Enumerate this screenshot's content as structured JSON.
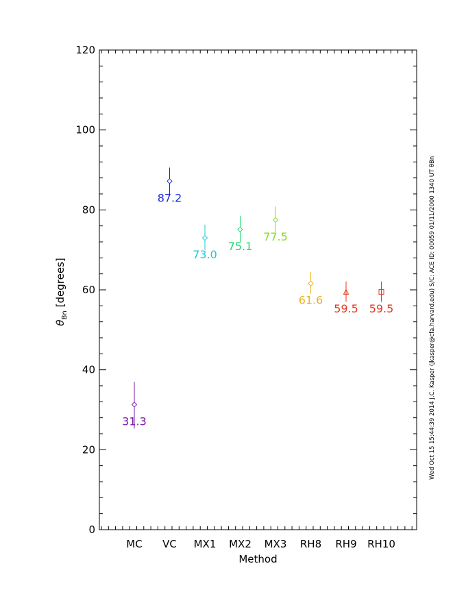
{
  "chart_data": {
    "type": "scatter",
    "xlabel": "Method",
    "ylabel_symbol": "θ",
    "ylabel_subscript": "Bn",
    "ylabel_units": "[degrees]",
    "ylim": [
      0,
      120
    ],
    "yticks": [
      0,
      20,
      40,
      60,
      80,
      100,
      120
    ],
    "y_minor_step": 4,
    "categories": [
      "MC",
      "VC",
      "MX1",
      "MX2",
      "MX3",
      "RH8",
      "RH9",
      "RH10"
    ],
    "points": [
      {
        "method": "MC",
        "value": 31.3,
        "label": "31.3",
        "err_low": 25.3,
        "err_high": 37.0,
        "marker": "diamond",
        "color": "#7a1fa8"
      },
      {
        "method": "VC",
        "value": 87.2,
        "label": "87.2",
        "err_low": 84.0,
        "err_high": 90.6,
        "marker": "diamond",
        "color": "#1a2ad6"
      },
      {
        "method": "MX1",
        "value": 73.0,
        "label": "73.0",
        "err_low": 70.0,
        "err_high": 76.3,
        "marker": "diamond",
        "color": "#19c9d8"
      },
      {
        "method": "MX2",
        "value": 75.1,
        "label": "75.1",
        "err_low": 71.9,
        "err_high": 78.5,
        "marker": "diamond",
        "color": "#1fd870"
      },
      {
        "method": "MX3",
        "value": 77.5,
        "label": "77.5",
        "err_low": 74.4,
        "err_high": 80.8,
        "marker": "diamond",
        "color": "#7fe01f"
      },
      {
        "method": "RH8",
        "value": 61.6,
        "label": "61.6",
        "err_low": 59.0,
        "err_high": 64.5,
        "marker": "diamond",
        "color": "#f0b020"
      },
      {
        "method": "RH9",
        "value": 59.5,
        "label": "59.5",
        "err_low": 57.0,
        "err_high": 62.1,
        "marker": "triangle",
        "color": "#e8361d"
      },
      {
        "method": "RH10",
        "value": 59.5,
        "label": "59.5",
        "err_low": 57.0,
        "err_high": 62.1,
        "marker": "square",
        "color": "#e8361d"
      }
    ],
    "grid": false,
    "legend": "none"
  },
  "side_note": "Wed Oct 15 15:44:39 2014  J.C. Kasper (jkasper@cfa.harvard.edu)   S/C: ACE ID: 00059 01/11/2000  1340 UT θBn"
}
